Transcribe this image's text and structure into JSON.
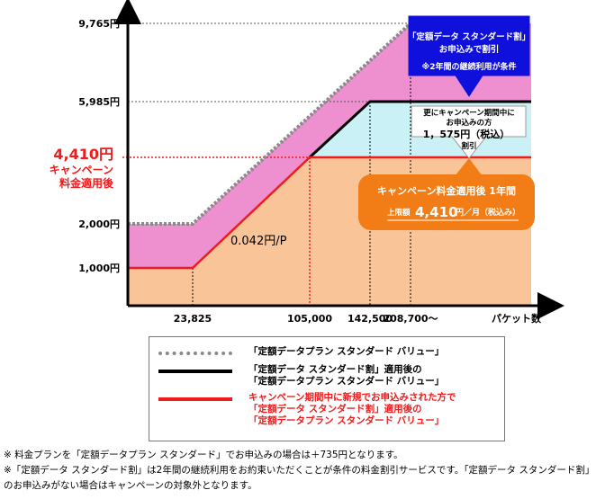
{
  "colors": {
    "gray_line": "#8a8a8a",
    "black_line": "#000000",
    "red_line": "#ee1c1c",
    "pink_fill": "#ee8fd0",
    "cyan_fill": "#c9f1f6",
    "peach_fill": "#f9c598",
    "blue_callout": "#1010dd",
    "orange_callout": "#f27d17"
  },
  "chart_data": {
    "type": "line",
    "xlabel": "パケット数",
    "x_ticks": [
      {
        "value": 23825,
        "label": "23,825",
        "color": "#000000"
      },
      {
        "value": 105000,
        "label": "105,000",
        "color": "#ee1c1c"
      },
      {
        "value": 142500,
        "label": "142,500",
        "color": "#000000"
      },
      {
        "value": 208700,
        "label": "208,700～",
        "color": "#000000"
      }
    ],
    "y_ticks": [
      {
        "value": 1000,
        "label": "1,000円"
      },
      {
        "value": 2000,
        "label": "2,000円"
      },
      {
        "value": 5985,
        "label": "5,985円"
      },
      {
        "value": 9765,
        "label": "9,765円"
      }
    ],
    "y_highlight": {
      "value": 4410,
      "lines": [
        "4,410円",
        "キャンペーン",
        "料金適用後"
      ]
    },
    "slope_label": "0.042円/P",
    "series": [
      {
        "name": "「定額データプラン スタンダード バリュー」",
        "style": "dotted-gray",
        "x": [
          0,
          23825,
          208700,
          240000
        ],
        "y": [
          2000,
          2000,
          9765,
          9765
        ]
      },
      {
        "name": "「定額データ スタンダード割」適用後の「定額データプラン スタンダード バリュー」",
        "style": "solid-black",
        "x": [
          105000,
          142500,
          240000
        ],
        "y": [
          4410,
          5985,
          5985
        ]
      },
      {
        "name": "キャンペーン期間中に新規でお申込みされた方で「定額データ スタンダード割」適用後の「定額データプラン スタンダード バリュー」",
        "style": "solid-red",
        "x": [
          0,
          23825,
          105000,
          240000
        ],
        "y": [
          1000,
          1000,
          4410,
          4410
        ]
      }
    ],
    "callouts": {
      "blue": [
        "「定額データ スタンダード割」",
        "お申込みで割引",
        "※2年間の継続利用が条件"
      ],
      "white": [
        "更にキャンペーン期間中に",
        "お申込みの方",
        "1，575円（税込）",
        "割引"
      ],
      "orange_title": "キャンペーン料金適用後 1年間",
      "orange_prefix": "上限額",
      "orange_amount": "4,410",
      "orange_unit": "円／月（税込み）"
    }
  },
  "legend": [
    {
      "style": "dotted-gray",
      "text": "「定額データプラン スタンダード バリュー」",
      "color": "#000000"
    },
    {
      "style": "solid-black",
      "text": "「定額データ スタンダード割」適用後の\n「定額データプラン スタンダード バリュー」",
      "color": "#000000"
    },
    {
      "style": "solid-red",
      "text": "キャンペーン期間中に新規でお申込みされた方で\n「定額データ スタンダード割」適用後の\n「定額データプラン スタンダード バリュー」",
      "color": "#ee1c1c"
    }
  ],
  "notes": [
    "※ 料金プランを「定額データプラン スタンダード」でお申込みの場合は＋735円となります。",
    "※「定額データ スタンダード割」は2年間の継続利用をお約束いただくことが条件の料金割引サービスです。「定額データ スタンダード割」のお申込みがない場合はキャンペーンの対象外となります。"
  ]
}
